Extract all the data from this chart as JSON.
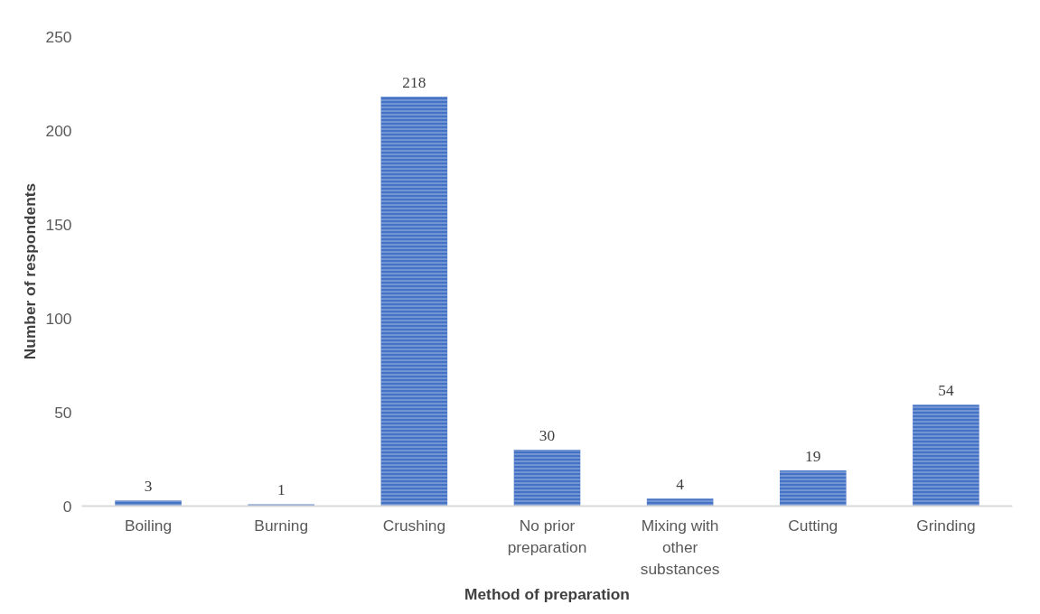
{
  "chart_data": {
    "type": "bar",
    "xlabel": "Method of preparation",
    "ylabel": "Number of respondents",
    "categories": [
      "Boiling",
      "Burning",
      "Crushing",
      "No prior preparation",
      "Mixing with other substances",
      "Cutting",
      "Grinding"
    ],
    "values": [
      3,
      1,
      218,
      30,
      4,
      19,
      54
    ],
    "color": "#4472c4",
    "ylim": [
      0,
      250
    ],
    "yticks": [
      0,
      50,
      100,
      150,
      200,
      250
    ],
    "grid": false,
    "data_labels": true
  }
}
